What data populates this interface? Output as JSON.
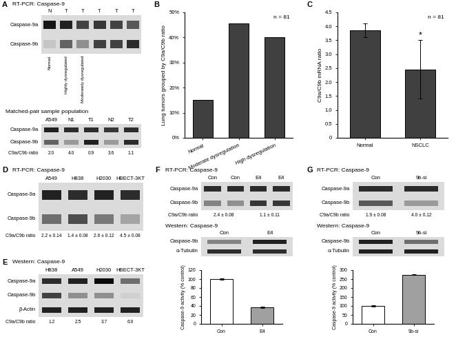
{
  "chart_data": [
    {
      "type": "bar",
      "panel": "B",
      "ylabel": "Lung tumors grouped by C9a/C9b ratio",
      "annotation": "n = 81",
      "categories": [
        "Normal",
        "Moderate dysregulation",
        "High dysregulation"
      ],
      "values": [
        15,
        45.5,
        40
      ],
      "color": "#404040",
      "ylim": [
        0,
        50
      ],
      "yticks": [
        {
          "value": 0,
          "label": "0%"
        },
        {
          "value": 10,
          "label": "10%"
        },
        {
          "value": 20,
          "label": "20%"
        },
        {
          "value": 30,
          "label": "30%"
        },
        {
          "value": 40,
          "label": "40%"
        },
        {
          "value": 50,
          "label": "50%"
        }
      ],
      "grid": false
    },
    {
      "type": "bar",
      "panel": "C",
      "ylabel": "C9a/C9b mRNA ratio",
      "annotation": "n = 81",
      "categories": [
        "Normal",
        "NSCLC"
      ],
      "values": [
        3.85,
        2.45
      ],
      "errors": [
        0.25,
        1.05
      ],
      "significance": [
        null,
        "*"
      ],
      "color": "#404040",
      "ylim": [
        0,
        4.5
      ],
      "yticks": [
        0,
        0.5,
        1.0,
        1.5,
        2.0,
        2.5,
        3.0,
        3.5,
        4.0,
        4.5
      ],
      "grid": false
    },
    {
      "type": "bar",
      "ylabel": "Caspase-9 activity (% control)",
      "categories": [
        "Con",
        "E4"
      ],
      "values": [
        100,
        37
      ],
      "errors": [
        2,
        2
      ],
      "colors": [
        "#ffffff",
        "#a0a0a0"
      ],
      "ylim": [
        0,
        120
      ],
      "yticks": [
        0,
        20,
        40,
        60,
        80,
        100,
        120
      ],
      "grid": false
    },
    {
      "type": "bar",
      "ylabel": "Caspase-9 activity (% control)",
      "categories": [
        "Con",
        "9b-si"
      ],
      "values": [
        100,
        275
      ],
      "errors": [
        2,
        3
      ],
      "colors": [
        "#ffffff",
        "#a0a0a0"
      ],
      "ylim": [
        0,
        300
      ],
      "yticks": [
        0,
        50,
        100,
        150,
        200,
        250,
        300
      ],
      "grid": false
    }
  ],
  "gels": [
    {
      "panel": "A",
      "title": "RT-PCR: Caspase-9",
      "lanes": [
        "N",
        "T",
        "T",
        "T",
        "T",
        "T"
      ],
      "lane_notes": [
        "Normal",
        "Highly dysregulated",
        "Moderately dysregulated",
        null,
        null,
        null
      ],
      "rows": [
        {
          "name": "Caspase-9a",
          "intensity": [
            0.9,
            0.85,
            0.7,
            0.75,
            0.7,
            0.6
          ]
        },
        {
          "name": "Caspase-9b",
          "intensity": [
            0.1,
            0.55,
            0.35,
            0.7,
            0.7,
            0.8
          ]
        }
      ]
    },
    {
      "panel": null,
      "title": "Matched-pair sample population",
      "lanes": [
        "A549",
        "N1",
        "T1",
        "N2",
        "T2"
      ],
      "rows": [
        {
          "name": "Caspase-9a",
          "intensity": [
            0.85,
            0.8,
            0.8,
            0.75,
            0.8
          ]
        },
        {
          "name": "Caspase-9b",
          "intensity": [
            0.55,
            0.3,
            0.85,
            0.3,
            0.8
          ]
        }
      ],
      "ratio_label": "C9a/C9b ratio",
      "ratios": [
        "2.0",
        "4.0",
        "0.9",
        "3.6",
        "1.1"
      ]
    },
    {
      "panel": "D",
      "title": "RT-PCR: Caspase-9",
      "lanes": [
        "A549",
        "H838",
        "H2030",
        "HBECT-3KT"
      ],
      "rows": [
        {
          "name": "Caspase-9a",
          "intensity": [
            0.85,
            0.8,
            0.85,
            0.8
          ]
        },
        {
          "name": "Caspase-9b",
          "intensity": [
            0.5,
            0.65,
            0.45,
            0.25
          ]
        }
      ],
      "ratio_label": "C9a/C9b ratio",
      "ratios": [
        "2.2 ± 0.14",
        "1.4 ± 0.08",
        "2.6 ± 0.12",
        "4.5 ± 0.08"
      ]
    },
    {
      "panel": "E",
      "title": "Western: Caspase-9",
      "lanes": [
        "H838",
        "A549",
        "H2030",
        "HBECT-3KT"
      ],
      "rows": [
        {
          "name": "Caspase-9a",
          "intensity": [
            0.8,
            0.85,
            0.95,
            0.5
          ]
        },
        {
          "name": "Caspase-9b",
          "intensity": [
            0.7,
            0.35,
            0.35,
            0.05
          ]
        },
        {
          "name": "β-Actin",
          "intensity": [
            0.85,
            0.85,
            0.85,
            0.85
          ]
        }
      ],
      "ratio_label": "C9a/C9b ratio",
      "ratios": [
        "1.2",
        "2.5",
        "3.7",
        "6.0"
      ]
    },
    {
      "panel": "F",
      "title": "RT-PCR: Caspase-9",
      "lanes": [
        "Con",
        "Con",
        "E4",
        "E4"
      ],
      "rows": [
        {
          "name": "Caspase-9a",
          "intensity": [
            0.8,
            0.8,
            0.8,
            0.8
          ]
        },
        {
          "name": "Caspase-9b",
          "intensity": [
            0.4,
            0.35,
            0.75,
            0.75
          ]
        }
      ],
      "ratio_label": "C9a/C9b ratio",
      "ratios": [
        "2.4 ± 0.08",
        "1.1 ± 0.11"
      ]
    },
    {
      "panel": null,
      "title": "Western: Caspase-9",
      "lanes": [
        "Con",
        "E4"
      ],
      "rows": [
        {
          "name": "Caspase-9b",
          "intensity": [
            0.4,
            0.85
          ]
        },
        {
          "name": "α-Tubulin",
          "intensity": [
            0.8,
            0.8
          ]
        }
      ]
    },
    {
      "panel": "G",
      "title": "RT-PCR: Caspase-9",
      "lanes": [
        "Con",
        "9b-si"
      ],
      "rows": [
        {
          "name": "Caspase-9a",
          "intensity": [
            0.8,
            0.8
          ]
        },
        {
          "name": "Caspase-9b",
          "intensity": [
            0.6,
            0.3
          ]
        }
      ],
      "ratio_label": "C9a/C9b ratio",
      "ratios": [
        "1.9 ± 0.08",
        "4.0 ± 0.12"
      ]
    },
    {
      "panel": null,
      "title": "Western: Caspase-9",
      "lanes": [
        "Con",
        "9b-si"
      ],
      "rows": [
        {
          "name": "Caspase-9b",
          "intensity": [
            0.85,
            0.5
          ]
        },
        {
          "name": "α-Tubulin",
          "intensity": [
            0.85,
            0.85
          ]
        }
      ]
    }
  ]
}
